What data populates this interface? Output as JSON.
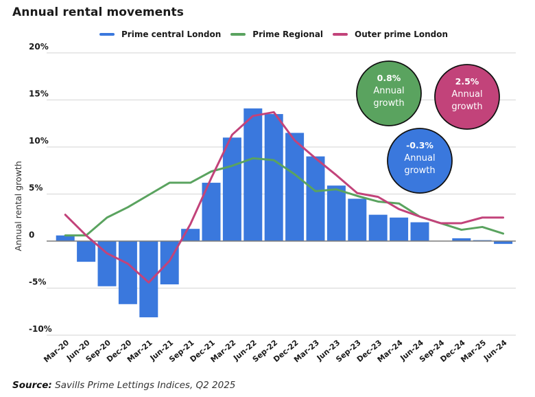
{
  "chart_data": {
    "type": "bar",
    "title": "Annual rental movements",
    "xlabel": "",
    "ylabel": "Annual rental growth",
    "ylim": [
      -10,
      20
    ],
    "yticks": [
      {
        "value": 20,
        "label": "20%"
      },
      {
        "value": 15,
        "label": "15%"
      },
      {
        "value": 10,
        "label": "10%"
      },
      {
        "value": 5,
        "label": "5%"
      },
      {
        "value": 0,
        "label": "0"
      },
      {
        "value": -5,
        "label": "-5%"
      },
      {
        "value": -10,
        "label": "-10%"
      }
    ],
    "grid": true,
    "legend_position": "top-center",
    "categories": [
      "Mar-20",
      "Jun-20",
      "Sep-20",
      "Dec-20",
      "Mar-21",
      "Jun-21",
      "Sep-21",
      "Dec-21",
      "Mar-22",
      "Jun-22",
      "Sep-22",
      "Dec-22",
      "Mar-23",
      "Jun-23",
      "Sep-23",
      "Dec-23",
      "Mar-24",
      "Jun-24",
      "Sep-24",
      "Dec-24",
      "Mar-25",
      "Jun-24"
    ],
    "series": [
      {
        "name": "Prime central London",
        "type": "bar",
        "color": "#3a78dd",
        "values": [
          0.6,
          -2.2,
          -4.8,
          -6.7,
          -8.1,
          -4.6,
          1.3,
          6.2,
          11.0,
          14.1,
          13.5,
          11.5,
          9.0,
          5.9,
          4.5,
          2.8,
          2.5,
          2.0,
          0.0,
          0.3,
          0.1,
          -0.3
        ]
      },
      {
        "name": "Prime Regional",
        "type": "line",
        "color": "#5aa35f",
        "values": [
          0.6,
          0.6,
          2.5,
          3.6,
          4.9,
          6.2,
          6.2,
          7.4,
          8.0,
          8.8,
          8.6,
          7.1,
          5.3,
          5.5,
          4.8,
          4.2,
          4.0,
          2.6,
          1.9,
          1.2,
          1.5,
          0.8
        ]
      },
      {
        "name": "Outer prime London",
        "type": "line",
        "color": "#c2437a",
        "values": [
          2.8,
          0.6,
          -1.3,
          -2.4,
          -4.4,
          -2.1,
          1.8,
          6.7,
          11.3,
          13.3,
          13.7,
          10.7,
          8.8,
          7.0,
          5.1,
          4.7,
          3.4,
          2.6,
          1.9,
          1.9,
          2.5,
          2.5
        ]
      }
    ],
    "annotations": [
      {
        "series": "Prime Regional",
        "value": "0.8%",
        "line1": "Annual",
        "line2": "growth",
        "color": "#5aa35f"
      },
      {
        "series": "Outer prime London",
        "value": "2.5%",
        "line1": "Annual",
        "line2": "growth",
        "color": "#c2437a"
      },
      {
        "series": "Prime central London",
        "value": "-0.3%",
        "line1": "Annual",
        "line2": "growth",
        "color": "#3a78dd"
      }
    ]
  },
  "source": {
    "label": "Source:",
    "text": " Savills Prime Lettings Indices, Q2 2025"
  }
}
